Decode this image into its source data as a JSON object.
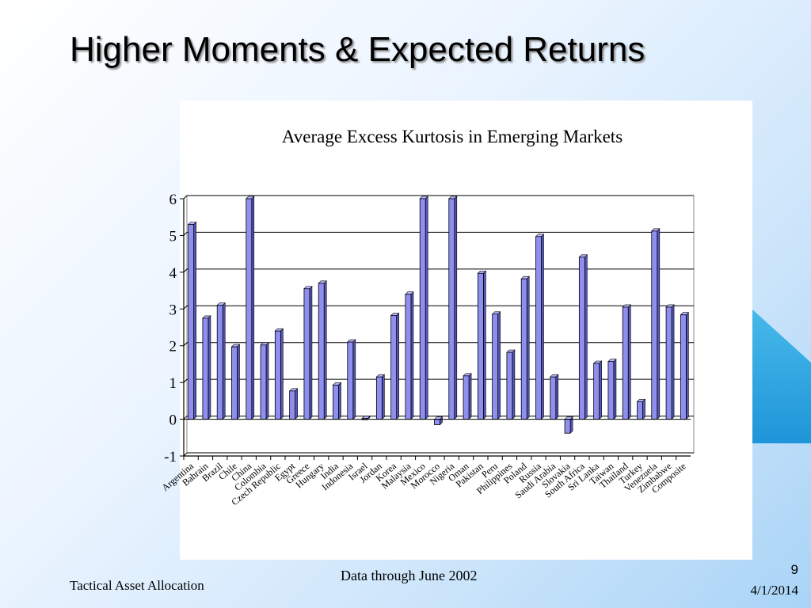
{
  "slide": {
    "title": "Higher Moments & Expected Returns",
    "footer_left": "Tactical Asset Allocation",
    "footer_center": "Data through June 2002",
    "page_number": "9",
    "date": "4/1/2014"
  },
  "chart_data": {
    "type": "bar",
    "title": "Average Excess Kurtosis in Emerging Markets",
    "xlabel": "",
    "ylabel": "",
    "ylim": [
      -1,
      6
    ],
    "yticks": [
      -1,
      0,
      1,
      2,
      3,
      4,
      5,
      6
    ],
    "grid": true,
    "legend": "none",
    "bar_color": "#8f8ff0",
    "categories": [
      "Argentina",
      "Bahrain",
      "Brazil",
      "Chile",
      "China",
      "Colombia",
      "Czech Republic",
      "Egypt",
      "Greece",
      "Hungary",
      "India",
      "Indonesia",
      "Israel",
      "Jordan",
      "Korea",
      "Malaysia",
      "Mexico",
      "Morocco",
      "Nigeria",
      "Oman",
      "Pakistan",
      "Peru",
      "Philippines",
      "Poland",
      "Russia",
      "Saudi Arabia",
      "Slovakia",
      "South Africa",
      "Sri Lanka",
      "Taiwan",
      "Thailand",
      "Turkey",
      "Venezuela",
      "Zimbabwe",
      "Composite"
    ],
    "values": [
      5.3,
      2.75,
      3.1,
      1.97,
      6.0,
      2.02,
      2.4,
      0.77,
      3.55,
      3.7,
      0.93,
      2.1,
      0.02,
      1.15,
      2.82,
      3.4,
      6.0,
      -0.15,
      6.0,
      1.18,
      3.97,
      2.86,
      1.82,
      3.82,
      4.97,
      1.15,
      -0.38,
      4.41,
      1.52,
      1.57,
      3.05,
      0.48,
      5.12,
      3.05,
      2.84
    ]
  }
}
